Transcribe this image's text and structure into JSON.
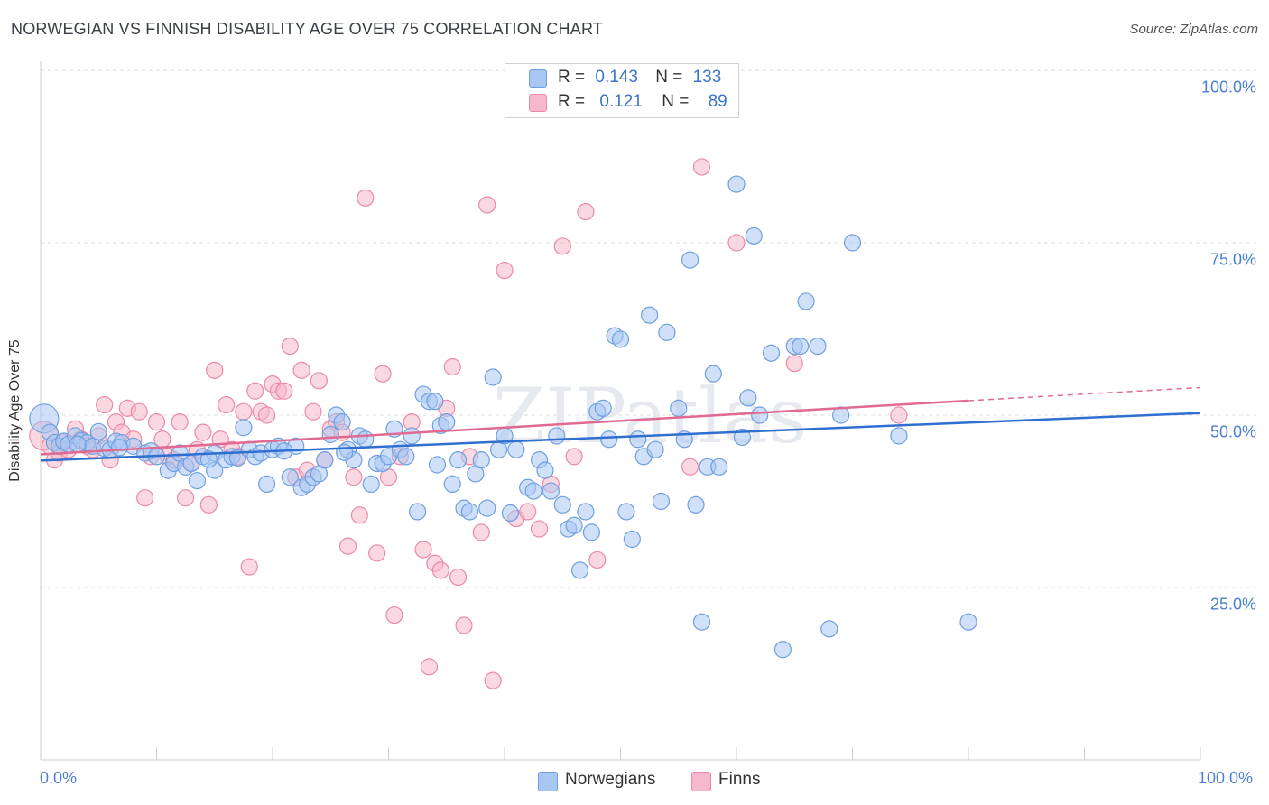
{
  "title": "NORWEGIAN VS FINNISH DISABILITY AGE OVER 75 CORRELATION CHART",
  "source": "Source: ZipAtlas.com",
  "colors": {
    "blue_fill": "#a7c7f2",
    "blue_stroke": "#6f9fe0",
    "blue_line": "#2f6fd0",
    "pink_fill": "#f6b8cb",
    "pink_stroke": "#ea8aa8",
    "pink_line": "#e06a92",
    "grid": "#dddddd",
    "tick_label": "#4a7fd1"
  },
  "legend_top": {
    "rows": [
      {
        "r_label": "R =",
        "r_value": "0.143",
        "n_label": "N =",
        "n_value": "133"
      },
      {
        "r_label": "R =",
        "r_value": "0.121",
        "n_label": "N =",
        "n_value": "89"
      }
    ]
  },
  "legend_bottom": {
    "items": [
      "Norwegians",
      "Finns"
    ]
  },
  "watermark": "ZIPatlas",
  "chart_data": {
    "type": "scatter",
    "title": "NORWEGIAN VS FINNISH DISABILITY AGE OVER 75 CORRELATION CHART",
    "xlabel": "",
    "ylabel": "Disability Age Over 75",
    "xlim": [
      0,
      100
    ],
    "ylim": [
      0,
      100
    ],
    "x_tick_labels": [
      "0.0%",
      "100.0%"
    ],
    "y_tick_labels": [
      "25.0%",
      "50.0%",
      "75.0%",
      "100.0%"
    ],
    "y_ticks": [
      25,
      50,
      75,
      100
    ],
    "grid": true,
    "legend_position": "top-center",
    "series": [
      {
        "name": "Norwegians",
        "r": 0.143,
        "n": 133,
        "trend": {
          "x": [
            0,
            100
          ],
          "y": [
            43.4,
            50.3
          ]
        },
        "points": [
          [
            0.3,
            49.5
          ],
          [
            0.8,
            47.5
          ],
          [
            1.2,
            46.0
          ],
          [
            1.6,
            45.5
          ],
          [
            2.0,
            46.2
          ],
          [
            2.4,
            45.8
          ],
          [
            3.0,
            47.0
          ],
          [
            3.5,
            46.3
          ],
          [
            4.0,
            46.0
          ],
          [
            4.5,
            45.5
          ],
          [
            5.0,
            47.6
          ],
          [
            5.5,
            45.2
          ],
          [
            6.0,
            45.0
          ],
          [
            6.5,
            46.2
          ],
          [
            7.0,
            46.0
          ],
          [
            8.0,
            45.5
          ],
          [
            9.0,
            44.5
          ],
          [
            9.5,
            44.8
          ],
          [
            10.0,
            44.0
          ],
          [
            11.0,
            42.0
          ],
          [
            11.5,
            43.0
          ],
          [
            12.0,
            44.5
          ],
          [
            12.5,
            42.5
          ],
          [
            13.0,
            43.0
          ],
          [
            13.5,
            40.5
          ],
          [
            14.0,
            44.0
          ],
          [
            15.0,
            44.5
          ],
          [
            15.0,
            42.0
          ],
          [
            16.0,
            43.5
          ],
          [
            16.5,
            44.0
          ],
          [
            17.0,
            43.8
          ],
          [
            17.5,
            48.2
          ],
          [
            18.0,
            45.0
          ],
          [
            18.5,
            44.0
          ],
          [
            19.0,
            44.5
          ],
          [
            19.5,
            40.0
          ],
          [
            20.0,
            45.0
          ],
          [
            20.5,
            45.5
          ],
          [
            21.5,
            41.0
          ],
          [
            22.0,
            45.5
          ],
          [
            22.5,
            39.5
          ],
          [
            23.0,
            40.0
          ],
          [
            23.5,
            41.0
          ],
          [
            24.0,
            41.5
          ],
          [
            24.5,
            43.5
          ],
          [
            25.0,
            47.2
          ],
          [
            25.5,
            50.0
          ],
          [
            26.0,
            49.0
          ],
          [
            26.5,
            45.0
          ],
          [
            27.0,
            43.5
          ],
          [
            27.5,
            47.0
          ],
          [
            28.0,
            46.5
          ],
          [
            28.5,
            40.0
          ],
          [
            29.0,
            43.0
          ],
          [
            29.5,
            43.0
          ],
          [
            30.0,
            44.0
          ],
          [
            30.5,
            48.0
          ],
          [
            31.0,
            45.0
          ],
          [
            31.5,
            44.0
          ],
          [
            32.0,
            47.0
          ],
          [
            32.5,
            36.0
          ],
          [
            33.0,
            53.0
          ],
          [
            33.5,
            52.0
          ],
          [
            34.0,
            52.0
          ],
          [
            34.5,
            48.5
          ],
          [
            35.0,
            49.0
          ],
          [
            35.5,
            40.0
          ],
          [
            36.0,
            43.5
          ],
          [
            36.5,
            36.5
          ],
          [
            37.0,
            36.0
          ],
          [
            37.5,
            41.5
          ],
          [
            38.0,
            43.5
          ],
          [
            38.5,
            36.5
          ],
          [
            39.0,
            55.5
          ],
          [
            39.5,
            45.0
          ],
          [
            40.0,
            47.0
          ],
          [
            40.5,
            35.8
          ],
          [
            41.0,
            45.0
          ],
          [
            42.0,
            39.5
          ],
          [
            42.5,
            39.0
          ],
          [
            43.0,
            43.5
          ],
          [
            43.5,
            42.0
          ],
          [
            44.0,
            39.0
          ],
          [
            44.5,
            47.0
          ],
          [
            45.0,
            37.0
          ],
          [
            45.5,
            33.5
          ],
          [
            46.0,
            34.0
          ],
          [
            46.5,
            27.5
          ],
          [
            47.0,
            36.0
          ],
          [
            47.5,
            33.0
          ],
          [
            48.0,
            50.5
          ],
          [
            48.5,
            51.0
          ],
          [
            49.0,
            46.5
          ],
          [
            49.5,
            61.5
          ],
          [
            50.0,
            61.0
          ],
          [
            50.5,
            36.0
          ],
          [
            51.0,
            32.0
          ],
          [
            51.5,
            46.5
          ],
          [
            52.0,
            44.0
          ],
          [
            52.5,
            64.5
          ],
          [
            53.0,
            45.0
          ],
          [
            53.5,
            37.5
          ],
          [
            54.0,
            62.0
          ],
          [
            55.0,
            51.0
          ],
          [
            55.5,
            46.5
          ],
          [
            56.0,
            72.5
          ],
          [
            56.5,
            37.0
          ],
          [
            57.0,
            20.0
          ],
          [
            57.5,
            42.5
          ],
          [
            58.0,
            56.0
          ],
          [
            58.5,
            42.5
          ],
          [
            60.0,
            83.5
          ],
          [
            60.5,
            46.8
          ],
          [
            61.0,
            52.5
          ],
          [
            61.5,
            76.0
          ],
          [
            62.0,
            50.0
          ],
          [
            63.0,
            59.0
          ],
          [
            64.0,
            16.0
          ],
          [
            65.0,
            60.0
          ],
          [
            65.5,
            60.0
          ],
          [
            66.0,
            66.5
          ],
          [
            67.0,
            60.0
          ],
          [
            68.0,
            19.0
          ],
          [
            69.0,
            50.0
          ],
          [
            70.0,
            75.0
          ],
          [
            74.0,
            47.0
          ],
          [
            80.0,
            20.0
          ],
          [
            3.2,
            45.8
          ],
          [
            6.8,
            45.3
          ],
          [
            14.5,
            43.6
          ],
          [
            21.0,
            44.8
          ],
          [
            26.2,
            44.6
          ],
          [
            34.2,
            42.8
          ]
        ]
      },
      {
        "name": "Finns",
        "r": 0.121,
        "n": 89,
        "trend": {
          "x": [
            0,
            80
          ],
          "y": [
            44.3,
            52.1
          ]
        },
        "trend_dashed": {
          "x": [
            80,
            100
          ],
          "y": [
            52.1,
            54.0
          ]
        },
        "points": [
          [
            0.3,
            47.0
          ],
          [
            0.8,
            45.5
          ],
          [
            1.2,
            43.5
          ],
          [
            1.6,
            44.5
          ],
          [
            2.0,
            46.0
          ],
          [
            2.4,
            45.0
          ],
          [
            3.0,
            48.0
          ],
          [
            3.5,
            46.5
          ],
          [
            4.0,
            45.5
          ],
          [
            4.5,
            45.0
          ],
          [
            5.0,
            47.0
          ],
          [
            5.5,
            51.5
          ],
          [
            6.0,
            43.5
          ],
          [
            6.5,
            49.0
          ],
          [
            7.0,
            47.5
          ],
          [
            7.5,
            51.0
          ],
          [
            8.0,
            46.5
          ],
          [
            8.5,
            50.5
          ],
          [
            9.0,
            38.0
          ],
          [
            9.5,
            44.0
          ],
          [
            10.0,
            49.0
          ],
          [
            10.5,
            46.5
          ],
          [
            11.0,
            44.0
          ],
          [
            11.5,
            43.5
          ],
          [
            12.0,
            49.0
          ],
          [
            12.5,
            38.0
          ],
          [
            13.0,
            43.0
          ],
          [
            13.5,
            45.0
          ],
          [
            14.0,
            47.5
          ],
          [
            14.5,
            37.0
          ],
          [
            15.0,
            56.5
          ],
          [
            15.5,
            46.5
          ],
          [
            16.0,
            51.5
          ],
          [
            16.5,
            45.0
          ],
          [
            17.0,
            44.0
          ],
          [
            17.5,
            50.5
          ],
          [
            18.0,
            28.0
          ],
          [
            18.5,
            53.5
          ],
          [
            19.0,
            50.5
          ],
          [
            19.5,
            50.0
          ],
          [
            20.0,
            54.5
          ],
          [
            20.5,
            53.5
          ],
          [
            21.0,
            53.5
          ],
          [
            21.5,
            60.0
          ],
          [
            22.0,
            41.0
          ],
          [
            22.5,
            56.5
          ],
          [
            23.0,
            42.0
          ],
          [
            23.5,
            50.5
          ],
          [
            24.0,
            55.0
          ],
          [
            24.5,
            43.5
          ],
          [
            25.0,
            48.0
          ],
          [
            25.5,
            49.0
          ],
          [
            26.0,
            47.5
          ],
          [
            26.5,
            31.0
          ],
          [
            27.0,
            41.0
          ],
          [
            27.5,
            35.5
          ],
          [
            28.0,
            81.5
          ],
          [
            29.0,
            30.0
          ],
          [
            29.5,
            56.0
          ],
          [
            30.0,
            41.0
          ],
          [
            30.5,
            21.0
          ],
          [
            31.0,
            44.0
          ],
          [
            32.0,
            49.0
          ],
          [
            33.0,
            30.5
          ],
          [
            33.5,
            13.5
          ],
          [
            34.0,
            28.5
          ],
          [
            34.5,
            27.5
          ],
          [
            35.0,
            51.0
          ],
          [
            35.5,
            57.0
          ],
          [
            36.0,
            26.5
          ],
          [
            36.5,
            19.5
          ],
          [
            37.0,
            44.0
          ],
          [
            38.0,
            33.0
          ],
          [
            38.5,
            80.5
          ],
          [
            39.0,
            11.5
          ],
          [
            40.0,
            71.0
          ],
          [
            41.0,
            35.0
          ],
          [
            42.0,
            36.0
          ],
          [
            43.0,
            33.5
          ],
          [
            44.0,
            40.0
          ],
          [
            45.0,
            74.5
          ],
          [
            46.0,
            44.0
          ],
          [
            47.0,
            79.5
          ],
          [
            48.0,
            29.0
          ],
          [
            56.0,
            42.5
          ],
          [
            57.0,
            86.0
          ],
          [
            60.0,
            75.0
          ],
          [
            65.0,
            57.5
          ],
          [
            74.0,
            50.0
          ]
        ]
      }
    ]
  }
}
